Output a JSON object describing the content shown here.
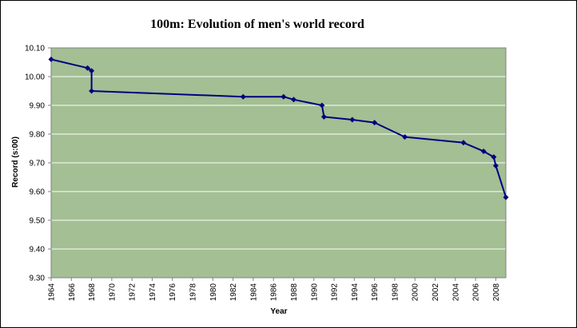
{
  "chart_data": {
    "type": "line",
    "title": "100m: Evolution of men's world record",
    "xlabel": "Year",
    "ylabel": "Record (s:00)",
    "xlim": [
      1964,
      2009
    ],
    "ylim": [
      9.3,
      10.1
    ],
    "x_ticks": [
      "1964",
      "1966",
      "1968",
      "1970",
      "1972",
      "1974",
      "1976",
      "1978",
      "1980",
      "1982",
      "1984",
      "1986",
      "1988",
      "1990",
      "1992",
      "1994",
      "1996",
      "1998",
      "2000",
      "2002",
      "2004",
      "2006",
      "2008"
    ],
    "y_ticks": [
      "10.10",
      "10.00",
      "9.90",
      "9.80",
      "9.70",
      "9.60",
      "9.50",
      "9.40",
      "9.30"
    ],
    "grid": "horizontal",
    "legend": "none",
    "colors": {
      "plot_area": "#a3bf93",
      "line": "#000080",
      "grid": "#ffffff",
      "axis": "#808080"
    },
    "series": [
      {
        "x": [
          1964.0,
          1967.6,
          1968.0,
          1968.0,
          1983.0,
          1987.0,
          1988.0,
          1990.8,
          1991.0,
          1993.8,
          1996.0,
          1999.0,
          2004.8,
          2006.8,
          2007.8,
          2008.0,
          2009.0
        ],
        "values": [
          10.06,
          10.03,
          10.02,
          9.95,
          9.93,
          9.93,
          9.92,
          9.9,
          9.86,
          9.85,
          9.84,
          9.79,
          9.77,
          9.74,
          9.72,
          9.69,
          9.58
        ]
      }
    ]
  }
}
